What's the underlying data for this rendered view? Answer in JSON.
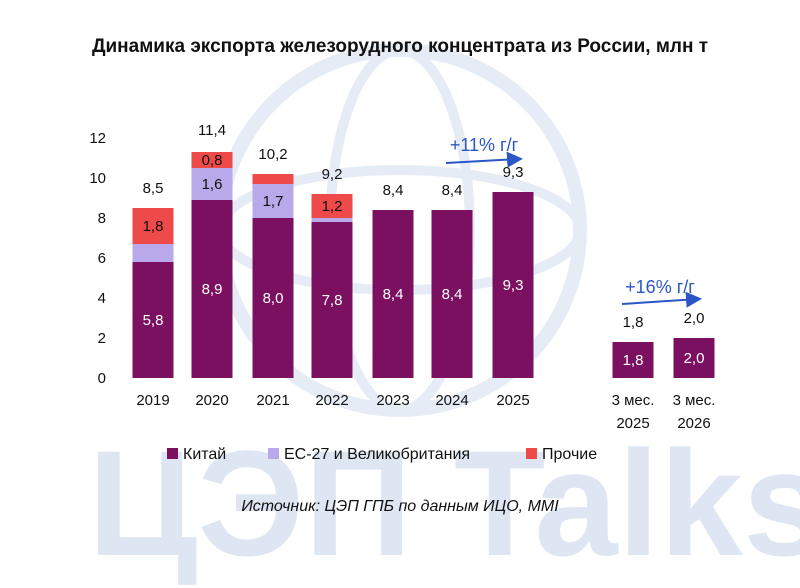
{
  "chart_data": {
    "type": "bar",
    "stacked": true,
    "title": "Динамика экспорта железорудного концентрата из России, млн т",
    "categories": [
      "2019",
      "2020",
      "2021",
      "2022",
      "2023",
      "2024",
      "2025",
      "3 мес. 2025",
      "3 мес. 2026"
    ],
    "series": [
      {
        "name": "Китай",
        "color": "#7b1060",
        "values": [
          5.8,
          8.9,
          8.0,
          7.8,
          8.4,
          8.4,
          9.3,
          1.8,
          2.0
        ]
      },
      {
        "name": "ЕС-27 и Великобритания",
        "color": "#b9a8ea",
        "values": [
          0.9,
          1.6,
          1.7,
          0.2,
          0,
          0,
          0,
          0,
          0
        ]
      },
      {
        "name": "Прочие",
        "color": "#ee4a4a",
        "values": [
          1.8,
          0.8,
          0.5,
          1.2,
          0,
          0,
          0,
          0,
          0
        ]
      }
    ],
    "segment_labels": [
      [
        "5,8",
        "",
        "1,8"
      ],
      [
        "8,9",
        "1,6",
        "0,8"
      ],
      [
        "8,0",
        "1,7",
        ""
      ],
      [
        "7,8",
        "",
        "1,2"
      ],
      [
        "8,4",
        "",
        ""
      ],
      [
        "8,4",
        "",
        ""
      ],
      [
        "9,3",
        "",
        ""
      ],
      [
        "1,8",
        "",
        ""
      ],
      [
        "2,0",
        "",
        ""
      ]
    ],
    "totals": [
      8.5,
      11.4,
      10.2,
      9.2,
      8.4,
      8.4,
      9.3,
      1.8,
      2.0
    ],
    "total_labels": [
      "8,5",
      "11,4",
      "10,2",
      "9,2",
      "8,4",
      "8,4",
      "9,3",
      "1,8",
      "2,0"
    ],
    "yticks": [
      "0",
      "2",
      "4",
      "6",
      "8",
      "10",
      "12"
    ],
    "ylim": [
      0,
      12
    ],
    "grid": false,
    "legend_position": "bottom",
    "annotations": [
      "+11% г/г",
      "+16% г/г"
    ],
    "source": "Источник: ЦЭП ГПБ по данным ИЦО, ММІ",
    "watermark": "ЦЭП Talks"
  },
  "colors": {
    "china": "#7b1060",
    "eu": "#b9a8ea",
    "other": "#ee4a4a",
    "growth_arrow": "#2a56c6",
    "watermark": "#dfe6f3"
  }
}
